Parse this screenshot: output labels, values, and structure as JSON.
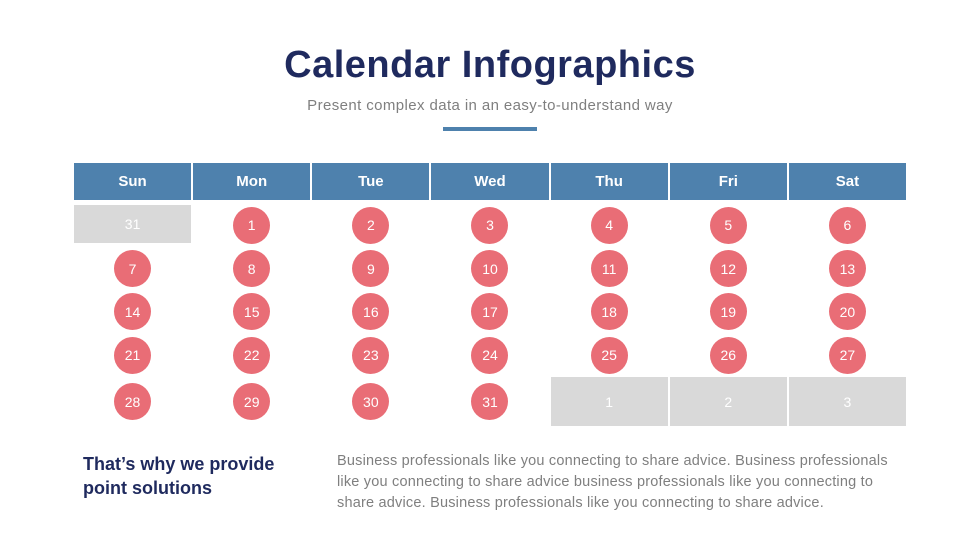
{
  "colors": {
    "background": "#ffffff",
    "navy": "#1f2a5e",
    "steel_blue": "#4e81ad",
    "coral": "#e96d76",
    "gray_box": "#d9d9d9",
    "gray_text": "#7f7f7f"
  },
  "header": {
    "title": "Calendar Infographics",
    "subtitle": "Present complex data in an easy-to-understand way"
  },
  "calendar": {
    "weekdays": [
      "Sun",
      "Mon",
      "Tue",
      "Wed",
      "Thu",
      "Fri",
      "Sat"
    ],
    "rows": [
      [
        {
          "label": "31",
          "type": "gray"
        },
        {
          "label": "1",
          "type": "circle"
        },
        {
          "label": "2",
          "type": "circle"
        },
        {
          "label": "3",
          "type": "circle"
        },
        {
          "label": "4",
          "type": "circle"
        },
        {
          "label": "5",
          "type": "circle"
        },
        {
          "label": "6",
          "type": "circle"
        }
      ],
      [
        {
          "label": "7",
          "type": "circle"
        },
        {
          "label": "8",
          "type": "circle"
        },
        {
          "label": "9",
          "type": "circle"
        },
        {
          "label": "10",
          "type": "circle"
        },
        {
          "label": "11",
          "type": "circle"
        },
        {
          "label": "12",
          "type": "circle"
        },
        {
          "label": "13",
          "type": "circle"
        }
      ],
      [
        {
          "label": "14",
          "type": "circle"
        },
        {
          "label": "15",
          "type": "circle"
        },
        {
          "label": "16",
          "type": "circle"
        },
        {
          "label": "17",
          "type": "circle"
        },
        {
          "label": "18",
          "type": "circle"
        },
        {
          "label": "19",
          "type": "circle"
        },
        {
          "label": "20",
          "type": "circle"
        }
      ],
      [
        {
          "label": "21",
          "type": "circle"
        },
        {
          "label": "22",
          "type": "circle"
        },
        {
          "label": "23",
          "type": "circle"
        },
        {
          "label": "24",
          "type": "circle"
        },
        {
          "label": "25",
          "type": "circle"
        },
        {
          "label": "26",
          "type": "circle"
        },
        {
          "label": "27",
          "type": "circle"
        }
      ],
      [
        {
          "label": "28",
          "type": "circle"
        },
        {
          "label": "29",
          "type": "circle"
        },
        {
          "label": "30",
          "type": "circle"
        },
        {
          "label": "31",
          "type": "circle"
        },
        {
          "label": "1",
          "type": "gray"
        },
        {
          "label": "2",
          "type": "gray"
        },
        {
          "label": "3",
          "type": "gray"
        }
      ]
    ]
  },
  "footer": {
    "heading_line1": "That’s why we provide",
    "heading_line2": "point solutions",
    "body": "Business professionals like you connecting to share advice. Business professionals like you connecting to share advice business professionals like you connecting to share advice. Business professionals like you connecting to share advice."
  }
}
